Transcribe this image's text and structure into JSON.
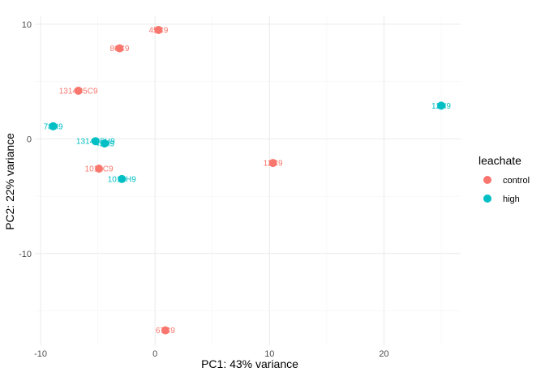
{
  "chart_data": {
    "type": "scatter",
    "xlabel": "PC1: 43% variance",
    "ylabel": "PC2: 22% variance",
    "xlim": [
      -10.5,
      26.7
    ],
    "ylim": [
      -18,
      10.7
    ],
    "x_ticks": [
      -10,
      0,
      10,
      20
    ],
    "y_ticks": [
      -10,
      0,
      10
    ],
    "x_tick_labels": [
      "-10",
      "0",
      "10",
      "20"
    ],
    "y_tick_labels": [
      "-10",
      "0",
      "10"
    ],
    "grid": true,
    "legend": {
      "title": "leachate",
      "position": "right",
      "entries": [
        {
          "name": "control",
          "color": "#F8766D"
        },
        {
          "name": "high",
          "color": "#00BFC4"
        }
      ]
    },
    "series": [
      {
        "name": "control",
        "color": "#F8766D",
        "points": [
          {
            "x": 0.3,
            "y": 9.5,
            "label": "45C9"
          },
          {
            "x": -3.1,
            "y": 7.9,
            "label": "86C9"
          },
          {
            "x": -6.7,
            "y": 4.2,
            "label": "1314C5C9"
          },
          {
            "x": 10.3,
            "y": -2.1,
            "label": "12C9"
          },
          {
            "x": -4.9,
            "y": -2.6,
            "label": "1012C9"
          },
          {
            "x": 0.9,
            "y": -16.7,
            "label": "67C9"
          }
        ]
      },
      {
        "name": "high",
        "color": "#00BFC4",
        "points": [
          {
            "x": 25.0,
            "y": 2.9,
            "label": "12H9"
          },
          {
            "x": -8.9,
            "y": 1.1,
            "label": "78H9"
          },
          {
            "x": -5.2,
            "y": -0.2,
            "label": "1314C5H9"
          },
          {
            "x": -4.4,
            "y": -0.4,
            "label": "45H9"
          },
          {
            "x": -2.9,
            "y": -3.5,
            "label": "1012H9"
          }
        ]
      }
    ]
  }
}
